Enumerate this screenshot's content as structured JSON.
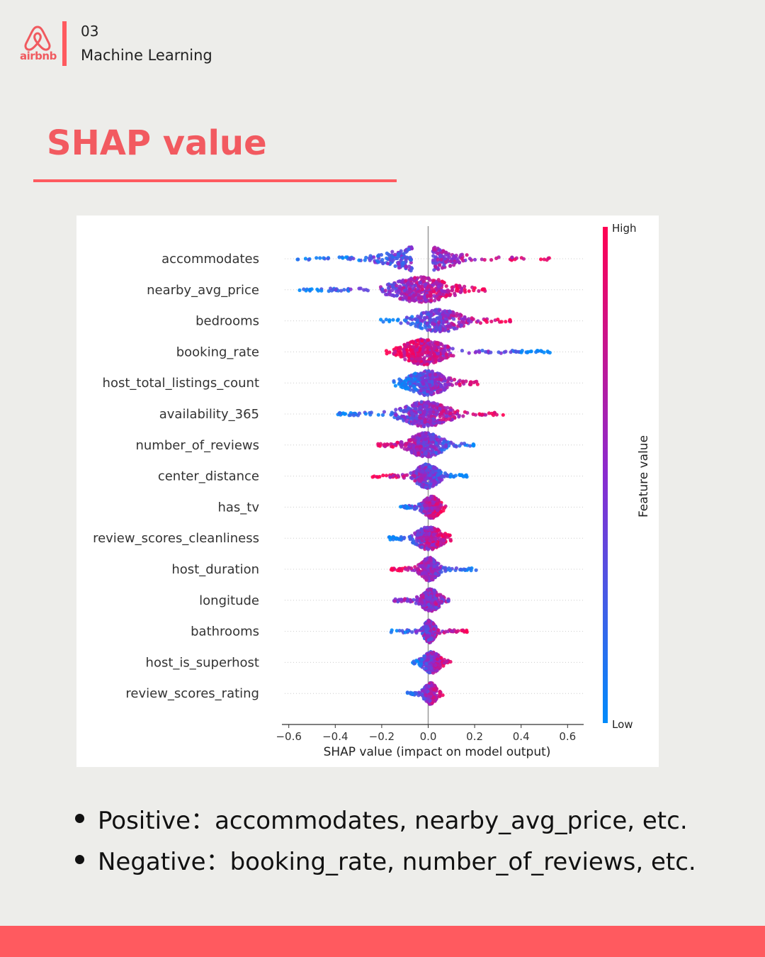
{
  "header": {
    "logo_text": "airbnb",
    "section_number": "03",
    "section_title": "Machine Learning"
  },
  "title": "SHAP value",
  "colors": {
    "brand": "#ff5a5f",
    "title_text": "#f25a60",
    "background": "#ededea",
    "feature_low": "#008bfb",
    "feature_high": "#ff0052"
  },
  "chart_data": {
    "type": "scatter",
    "subtype": "shap-beeswarm",
    "xlabel": "SHAP value (impact on model output)",
    "xlim": [
      -0.62,
      0.68
    ],
    "xticks": [
      -0.6,
      -0.4,
      -0.2,
      0.0,
      0.2,
      0.4,
      0.6
    ],
    "xtick_labels": [
      "−0.6",
      "−0.4",
      "−0.2",
      "0.0",
      "0.2",
      "0.4",
      "0.6"
    ],
    "zero_line": 0.0,
    "colorbar": {
      "label": "Feature value",
      "high_label": "High",
      "low_label": "Low"
    },
    "features": [
      {
        "name": "accommodates",
        "min": -0.57,
        "max": 0.62,
        "bulk_left": -0.24,
        "bulk_right": 0.18,
        "gap": [
          -0.07,
          0.02
        ],
        "trend": "positive",
        "density": 1.0
      },
      {
        "name": "nearby_avg_price",
        "min": -0.56,
        "max": 0.27,
        "bulk_left": -0.22,
        "bulk_right": 0.16,
        "trend": "positive",
        "density": 1.0
      },
      {
        "name": "bedrooms",
        "min": -0.21,
        "max": 0.36,
        "bulk_left": -0.1,
        "bulk_right": 0.2,
        "trend": "positive",
        "density": 0.7
      },
      {
        "name": "booking_rate",
        "min": -0.18,
        "max": 0.53,
        "bulk_left": -0.16,
        "bulk_right": 0.12,
        "trend": "negative",
        "density": 1.0
      },
      {
        "name": "host_total_listings_count",
        "min": -0.15,
        "max": 0.23,
        "bulk_left": -0.13,
        "bulk_right": 0.12,
        "trend": "positive",
        "density": 0.9
      },
      {
        "name": "availability_365",
        "min": -0.39,
        "max": 0.33,
        "bulk_left": -0.16,
        "bulk_right": 0.14,
        "trend": "positive",
        "density": 1.0
      },
      {
        "name": "number_of_reviews",
        "min": -0.22,
        "max": 0.2,
        "bulk_left": -0.12,
        "bulk_right": 0.1,
        "trend": "negative",
        "density": 0.9
      },
      {
        "name": "center_distance",
        "min": -0.24,
        "max": 0.17,
        "bulk_left": -0.08,
        "bulk_right": 0.07,
        "trend": "negative",
        "density": 0.85
      },
      {
        "name": "has_tv",
        "min": -0.12,
        "max": 0.08,
        "bulk_left": -0.04,
        "bulk_right": 0.07,
        "trend": "positive",
        "density": 0.6
      },
      {
        "name": "review_scores_cleanliness",
        "min": -0.17,
        "max": 0.11,
        "bulk_left": -0.08,
        "bulk_right": 0.09,
        "trend": "positive",
        "density": 0.8
      },
      {
        "name": "host_duration",
        "min": -0.16,
        "max": 0.21,
        "bulk_left": -0.05,
        "bulk_right": 0.06,
        "trend": "negative",
        "density": 0.8
      },
      {
        "name": "longitude",
        "min": -0.15,
        "max": 0.09,
        "bulk_left": -0.05,
        "bulk_right": 0.07,
        "trend": "mixed",
        "density": 0.7
      },
      {
        "name": "bathrooms",
        "min": -0.16,
        "max": 0.17,
        "bulk_left": -0.03,
        "bulk_right": 0.04,
        "trend": "positive",
        "density": 0.7
      },
      {
        "name": "host_is_superhost",
        "min": -0.07,
        "max": 0.1,
        "bulk_left": -0.04,
        "bulk_right": 0.07,
        "trend": "positive",
        "density": 0.55
      },
      {
        "name": "review_scores_rating",
        "min": -0.09,
        "max": 0.07,
        "bulk_left": -0.03,
        "bulk_right": 0.05,
        "trend": "positive",
        "density": 0.55
      }
    ]
  },
  "bullets": [
    {
      "label": "Positive",
      "separator": "：",
      "text": "accommodates, nearby_avg_price, etc."
    },
    {
      "label": "Negative",
      "separator": "：",
      "text": "booking_rate, number_of_reviews, etc."
    }
  ]
}
